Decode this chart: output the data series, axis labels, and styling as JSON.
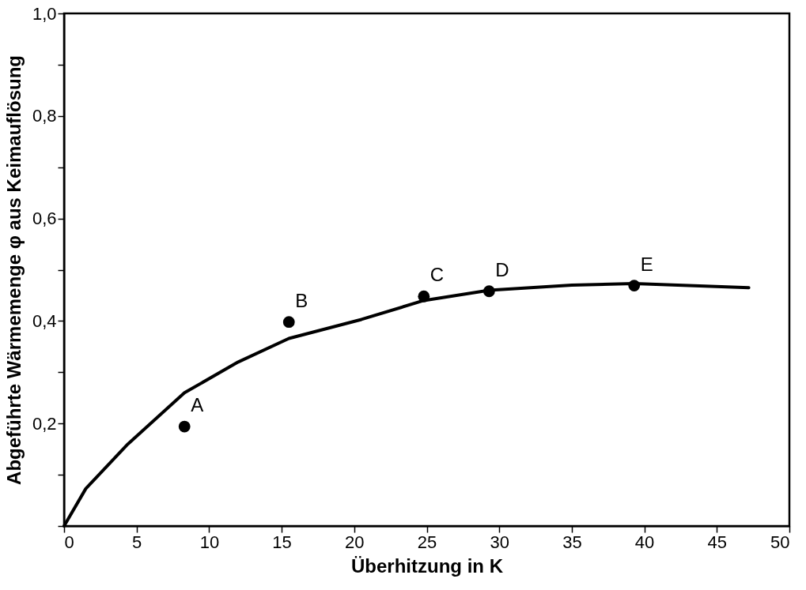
{
  "chart_data": {
    "type": "line",
    "xlabel": "Überhitzung in K",
    "ylabel": "Abgeführte Wärmemenge φ aus Keimauflösung",
    "xlim": [
      0,
      50
    ],
    "xticks": [
      0,
      5,
      10,
      15,
      20,
      25,
      30,
      35,
      40,
      45,
      50
    ],
    "ylim": [
      0,
      1
    ],
    "yticks": [
      {
        "value": 0,
        "label": null
      },
      {
        "value": 0.1,
        "label": null
      },
      {
        "value": 0.2,
        "label": "0,2"
      },
      {
        "value": 0.3,
        "label": null
      },
      {
        "value": 0.4,
        "label": "0,4"
      },
      {
        "value": 0.5,
        "label": null
      },
      {
        "value": 0.6,
        "label": "0,6"
      },
      {
        "value": 0.7,
        "label": null
      },
      {
        "value": 0.8,
        "label": "0,8"
      },
      {
        "value": 0.9,
        "label": null
      },
      {
        "value": 1,
        "label": "1,0"
      }
    ],
    "grid": false,
    "series": [
      {
        "color": "#000000",
        "line_style": "solid",
        "marker": "none",
        "x": [
          0,
          1.5,
          4.4,
          8.3,
          12,
          15.5,
          20.5,
          24.8,
          29.3,
          35,
          39.3,
          47.2
        ],
        "values": [
          0,
          0.073,
          0.16,
          0.26,
          0.32,
          0.366,
          0.403,
          0.44,
          0.46,
          0.47,
          0.473,
          0.465
        ]
      },
      {
        "type": "scatter",
        "color": "#000000",
        "marker": "circle",
        "x": [
          8.3,
          15.5,
          24.8,
          29.3,
          39.3
        ],
        "values": [
          0.194,
          0.398,
          0.448,
          0.458,
          0.469
        ]
      }
    ],
    "annotations": [
      {
        "text": "A",
        "x": 8.3,
        "y": 0.194
      },
      {
        "text": "B",
        "x": 15.5,
        "y": 0.398
      },
      {
        "text": "C",
        "x": 24.8,
        "y": 0.448
      },
      {
        "text": "D",
        "x": 29.3,
        "y": 0.458
      },
      {
        "text": "E",
        "x": 39.3,
        "y": 0.469
      }
    ]
  }
}
